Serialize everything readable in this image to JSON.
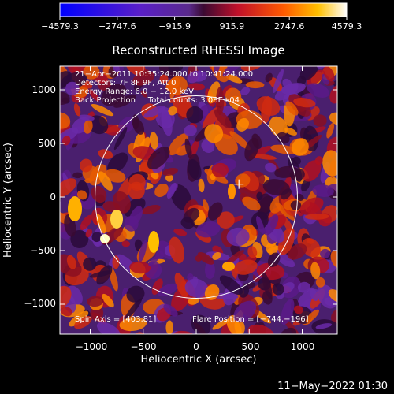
{
  "colorbar": {
    "tick_labels": [
      "−4579.3",
      "−2747.6",
      "−915.9",
      "915.9",
      "2747.6",
      "4579.3"
    ],
    "range": [
      -4579.3,
      4579.3
    ],
    "gradient_stops": [
      {
        "stop": 0.0,
        "color": "#0000ff"
      },
      {
        "stop": 0.28,
        "color": "#5a1fc8"
      },
      {
        "stop": 0.45,
        "color": "#5a2a8c"
      },
      {
        "stop": 0.5,
        "color": "#3a0a32"
      },
      {
        "stop": 0.62,
        "color": "#c0102a"
      },
      {
        "stop": 0.78,
        "color": "#ff5a00"
      },
      {
        "stop": 0.9,
        "color": "#ffc000"
      },
      {
        "stop": 1.0,
        "color": "#ffffff"
      }
    ]
  },
  "plot": {
    "title": "Reconstructed RHESSI Image",
    "xlabel": "Heliocentric X (arcsec)",
    "ylabel": "Heliocentric Y (arcsec)",
    "xlim": [
      -1300,
      1300
    ],
    "ylim": [
      -1300,
      1300
    ],
    "xticks": [
      -1000,
      -500,
      0,
      500,
      1000
    ],
    "yticks": [
      -1000,
      -500,
      0,
      500,
      1000
    ],
    "xtick_labels": [
      "−1000",
      "−500",
      "0",
      "500",
      "1000"
    ],
    "ytick_labels": [
      "−1000",
      "−500",
      "0",
      "500",
      "1000"
    ],
    "solar_limb_radius": 955,
    "flare_marker": [
      403,
      120
    ],
    "annotations": [
      "21−Apr−2011 10:35:24.000 to 10:41:24.000",
      "Detectors: 7F 8F 9F, Att 0",
      "Energy Range: 6.0 − 12.0 keV",
      "Back Projection     Total counts: 3.08E+04"
    ],
    "spin_axis": "Spin Axis = [403,81]",
    "flare_position": "Flare Position = [−744,−196]"
  },
  "footer": {
    "timestamp": "11−May−2022 01:30"
  }
}
